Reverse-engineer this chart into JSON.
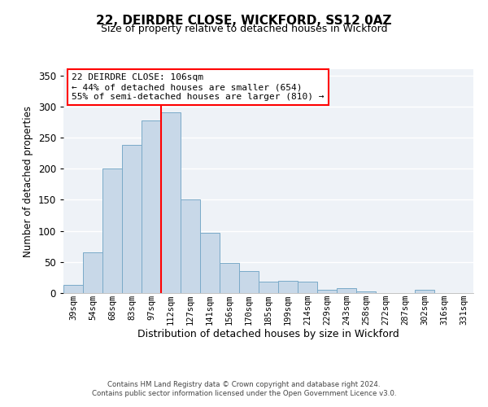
{
  "title": "22, DEIRDRE CLOSE, WICKFORD, SS12 0AZ",
  "subtitle": "Size of property relative to detached houses in Wickford",
  "xlabel": "Distribution of detached houses by size in Wickford",
  "ylabel": "Number of detached properties",
  "bar_labels": [
    "39sqm",
    "54sqm",
    "68sqm",
    "83sqm",
    "97sqm",
    "112sqm",
    "127sqm",
    "141sqm",
    "156sqm",
    "170sqm",
    "185sqm",
    "199sqm",
    "214sqm",
    "229sqm",
    "243sqm",
    "258sqm",
    "272sqm",
    "287sqm",
    "302sqm",
    "316sqm",
    "331sqm"
  ],
  "bar_values": [
    13,
    65,
    200,
    238,
    278,
    290,
    150,
    97,
    49,
    35,
    18,
    20,
    18,
    5,
    8,
    3,
    0,
    0,
    5,
    0,
    0
  ],
  "bar_color": "#c8d8e8",
  "bar_edge_color": "#7aaac8",
  "vline_color": "red",
  "vline_x_index": 4.5,
  "ylim": [
    0,
    360
  ],
  "yticks": [
    0,
    50,
    100,
    150,
    200,
    250,
    300,
    350
  ],
  "annotation_title": "22 DEIRDRE CLOSE: 106sqm",
  "annotation_line1": "← 44% of detached houses are smaller (654)",
  "annotation_line2": "55% of semi-detached houses are larger (810) →",
  "annotation_box_color": "white",
  "annotation_box_edge": "red",
  "footer_line1": "Contains HM Land Registry data © Crown copyright and database right 2024.",
  "footer_line2": "Contains public sector information licensed under the Open Government Licence v3.0.",
  "background_color": "#eef2f7"
}
